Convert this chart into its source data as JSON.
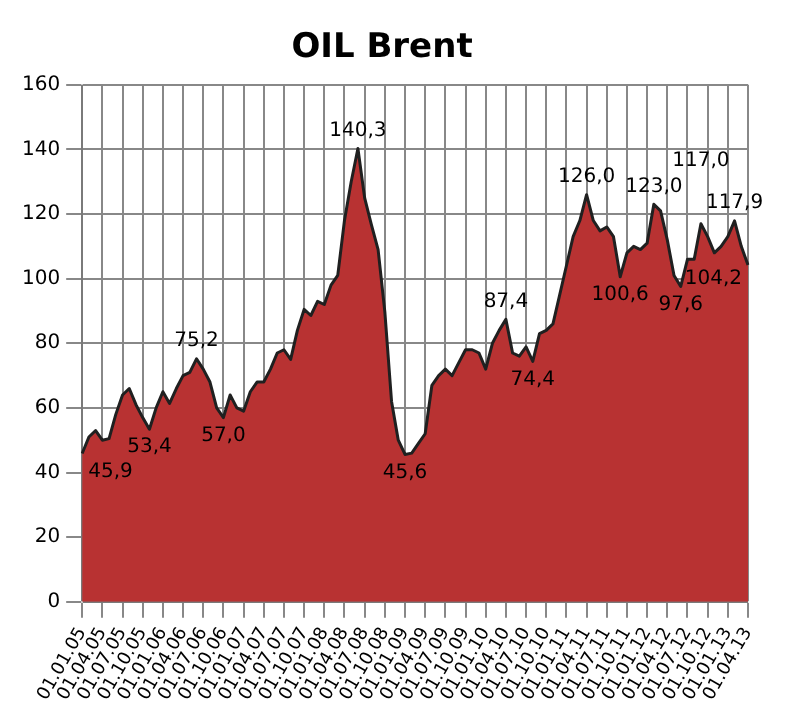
{
  "chart_data": {
    "type": "area",
    "title": "OIL Brent",
    "categories": [
      "01.01.05",
      null,
      null,
      "01.04.05",
      null,
      null,
      "01.07.05",
      null,
      null,
      "01.10.05",
      null,
      null,
      "01.01.06",
      null,
      null,
      "01.04.06",
      null,
      null,
      "01.07.06",
      null,
      null,
      "01.10.06",
      null,
      null,
      "01.01.07",
      null,
      null,
      "01.04.07",
      null,
      null,
      "01.07.07",
      null,
      null,
      "01.10.07",
      null,
      null,
      "01.01.08",
      null,
      null,
      "01.04.08",
      null,
      null,
      "01.07.08",
      null,
      null,
      "01.10.08",
      null,
      null,
      "01.01.09",
      null,
      null,
      "01.04.09",
      null,
      null,
      "01.07.09",
      null,
      null,
      "01.10.09",
      null,
      null,
      "01.01.10",
      null,
      null,
      "01.04.10",
      null,
      null,
      "01.07.10",
      null,
      null,
      "01.10.10",
      null,
      null,
      "01.01.11",
      null,
      null,
      "01.04.11",
      null,
      null,
      "01.07.11",
      null,
      null,
      "01.10.11",
      null,
      null,
      "01.01.12",
      null,
      null,
      "01.04.12",
      null,
      null,
      "01.07.12",
      null,
      null,
      "01.10.12",
      null,
      null,
      "01.01.13",
      null,
      null,
      "01.04.13"
    ],
    "series": [
      {
        "color": "#b83232",
        "values": [
          45.9,
          51,
          53,
          50,
          50.5,
          58,
          64,
          66,
          61,
          57,
          53.4,
          60,
          65,
          61.4,
          66,
          70,
          71,
          75.2,
          72,
          68,
          60,
          57.0,
          64,
          60,
          59,
          65,
          68,
          68,
          72,
          77,
          78,
          75,
          84,
          90.5,
          88.6,
          93,
          92,
          98,
          101,
          118,
          130,
          140.3,
          125,
          116.7,
          109,
          89.8,
          62,
          50,
          45.6,
          46,
          49,
          52,
          67,
          70,
          72,
          70,
          74,
          78,
          78,
          77,
          72,
          80,
          84,
          87.4,
          77,
          76,
          78.9,
          74.4,
          83,
          84,
          86,
          95,
          104,
          113,
          118,
          126.0,
          118,
          114.8,
          116,
          113,
          100.6,
          108,
          110,
          109,
          111,
          123.0,
          121,
          112,
          101,
          97.6,
          106,
          106,
          117.0,
          113,
          108,
          110,
          113,
          117.9,
          110,
          104.2
        ],
        "value_labels": [
          "45,9",
          null,
          null,
          null,
          null,
          null,
          null,
          null,
          null,
          null,
          "53,4",
          null,
          null,
          null,
          null,
          null,
          null,
          "75,2",
          null,
          null,
          null,
          "57,0",
          null,
          null,
          null,
          null,
          null,
          null,
          null,
          null,
          null,
          null,
          null,
          null,
          null,
          null,
          null,
          null,
          null,
          null,
          null,
          "140,3",
          null,
          null,
          null,
          null,
          null,
          null,
          "45,6",
          null,
          null,
          null,
          null,
          null,
          null,
          null,
          null,
          null,
          null,
          null,
          null,
          null,
          null,
          "87,4",
          null,
          null,
          null,
          "74,4",
          null,
          null,
          null,
          null,
          null,
          null,
          null,
          "126,0",
          null,
          null,
          null,
          null,
          "100,6",
          null,
          null,
          null,
          null,
          "123,0",
          null,
          null,
          null,
          "97,6",
          null,
          null,
          "117,0",
          null,
          null,
          null,
          null,
          "117,9",
          null,
          "104,2"
        ]
      }
    ],
    "ylim": [
      0,
      160
    ],
    "yticks": [
      0,
      20,
      40,
      60,
      80,
      100,
      120,
      140,
      160
    ],
    "grid": true,
    "legend": false
  }
}
